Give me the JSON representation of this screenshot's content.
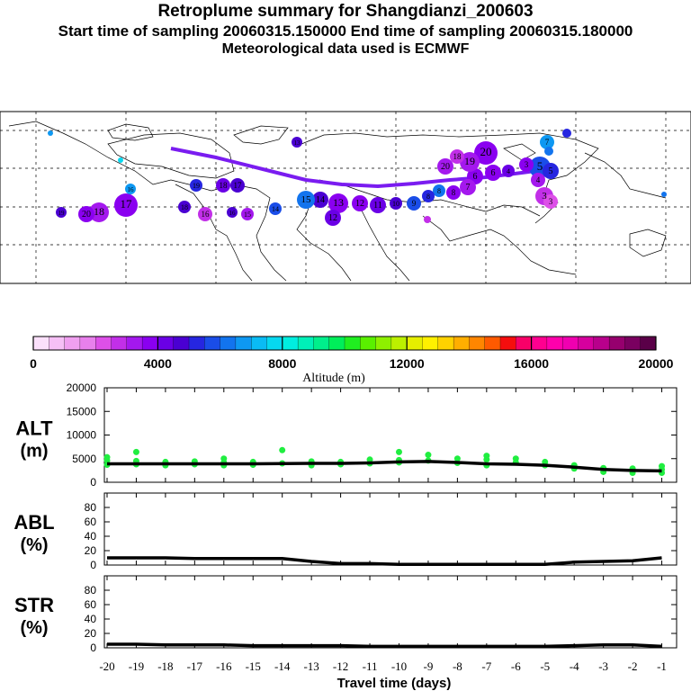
{
  "header": {
    "title": "Retroplume summary for Shangdianzi_200603",
    "sampling": "Start time of sampling 20060315.150000     End time of sampling 20060315.180000",
    "met": "Meteorological data used is ECMWF"
  },
  "colorbar": {
    "xlabel": "Altitude (m)",
    "ticks": [
      "0",
      "4000",
      "8000",
      "12000",
      "16000",
      "20000"
    ],
    "vmin": 0,
    "vmax": 20000,
    "colors": [
      "#fbe0fb",
      "#f6c0f6",
      "#f0a0f0",
      "#e880ec",
      "#dd50e8",
      "#c22fe8",
      "#a418ee",
      "#8a00f0",
      "#6a00e6",
      "#4a00d2",
      "#2626e0",
      "#1a4de8",
      "#1274ee",
      "#0e98f2",
      "#0abbf4",
      "#06d8f0",
      "#00eee0",
      "#00f0b8",
      "#00ef8c",
      "#00ee5a",
      "#20ee20",
      "#5af000",
      "#8ef000",
      "#bcf000",
      "#e6ee00",
      "#fff000",
      "#ffd200",
      "#ffae00",
      "#ff8600",
      "#ff5a00",
      "#f50e0e",
      "#f80068",
      "#ff0090",
      "#ff00ac",
      "#f000b0",
      "#d6009e",
      "#b8008c",
      "#96006e",
      "#7a0060",
      "#5a0048"
    ]
  },
  "map_labels": [
    "1",
    "2",
    "3",
    "4",
    "5",
    "6",
    "7",
    "8",
    "9",
    "10",
    "11",
    "12",
    "13",
    "14",
    "15",
    "16",
    "17",
    "18",
    "19",
    "20"
  ],
  "chart_data": [
    {
      "type": "line",
      "title": "ALT",
      "ylabel": "(m)",
      "x": [
        -20,
        -19,
        -18,
        -17,
        -16,
        -15,
        -14,
        -13,
        -12,
        -11,
        -10,
        -9,
        -8,
        -7,
        -6,
        -5,
        -4,
        -3,
        -2,
        -1
      ],
      "values": [
        3900,
        3900,
        3900,
        3900,
        3900,
        3900,
        3950,
        4000,
        4000,
        4100,
        4300,
        4400,
        4200,
        3900,
        3800,
        3600,
        3200,
        2700,
        2500,
        2400
      ],
      "ylim": [
        0,
        20000
      ],
      "yticks": [
        "0",
        "5000",
        "10000",
        "15000",
        "20000"
      ],
      "scatter_color": "#20ee40",
      "scatter_points": [
        [
          -20,
          3700
        ],
        [
          -20,
          4600
        ],
        [
          -20,
          5300
        ],
        [
          -19,
          3800
        ],
        [
          -19,
          4500
        ],
        [
          -19,
          6400
        ],
        [
          -18,
          3600
        ],
        [
          -18,
          4300
        ],
        [
          -17,
          3800
        ],
        [
          -17,
          4400
        ],
        [
          -16,
          3600
        ],
        [
          -16,
          4200
        ],
        [
          -16,
          5000
        ],
        [
          -15,
          3700
        ],
        [
          -15,
          4300
        ],
        [
          -14,
          4000
        ],
        [
          -14,
          6800
        ],
        [
          -13,
          3600
        ],
        [
          -13,
          4400
        ],
        [
          -12,
          3800
        ],
        [
          -12,
          4300
        ],
        [
          -11,
          4000
        ],
        [
          -11,
          4800
        ],
        [
          -10,
          4200
        ],
        [
          -10,
          4700
        ],
        [
          -10,
          6400
        ],
        [
          -9,
          4600
        ],
        [
          -9,
          5800
        ],
        [
          -8,
          4100
        ],
        [
          -8,
          5000
        ],
        [
          -7,
          3600
        ],
        [
          -7,
          4800
        ],
        [
          -7,
          5600
        ],
        [
          -6,
          4200
        ],
        [
          -6,
          5000
        ],
        [
          -5,
          3600
        ],
        [
          -5,
          4300
        ],
        [
          -4,
          2900
        ],
        [
          -4,
          3600
        ],
        [
          -3,
          2200
        ],
        [
          -3,
          3000
        ],
        [
          -2,
          2000
        ],
        [
          -2,
          2900
        ],
        [
          -1,
          2000
        ],
        [
          -1,
          2700
        ],
        [
          -1,
          3400
        ]
      ]
    },
    {
      "type": "line",
      "title": "ABL",
      "ylabel": "(%)",
      "x": [
        -20,
        -19,
        -18,
        -17,
        -16,
        -15,
        -14,
        -13,
        -12,
        -11,
        -10,
        -9,
        -8,
        -7,
        -6,
        -5,
        -4,
        -3,
        -2,
        -1
      ],
      "values": [
        10,
        10,
        10,
        9,
        9,
        9,
        9,
        5,
        2,
        2,
        1,
        1,
        1,
        1,
        1,
        1,
        4,
        5,
        6,
        10
      ],
      "ylim": [
        0,
        100
      ],
      "yticks": [
        "0",
        "20",
        "40",
        "60",
        "80"
      ]
    },
    {
      "type": "line",
      "title": "STR",
      "ylabel": "(%)",
      "x": [
        -20,
        -19,
        -18,
        -17,
        -16,
        -15,
        -14,
        -13,
        -12,
        -11,
        -10,
        -9,
        -8,
        -7,
        -6,
        -5,
        -4,
        -3,
        -2,
        -1
      ],
      "values": [
        5,
        5,
        4,
        4,
        4,
        3,
        3,
        3,
        3,
        2,
        2,
        2,
        2,
        2,
        2,
        2,
        3,
        4,
        4,
        2
      ],
      "ylim": [
        0,
        100
      ],
      "yticks": [
        "0",
        "20",
        "40",
        "60",
        "80"
      ]
    }
  ],
  "xaxis": {
    "label": "Travel time (days)",
    "ticks": [
      "-20",
      "-19",
      "-18",
      "-17",
      "-16",
      "-15",
      "-14",
      "-13",
      "-12",
      "-11",
      "-10",
      "-9",
      "-8",
      "-7",
      "-6",
      "-5",
      "-4",
      "-3",
      "-2",
      "-1"
    ]
  }
}
